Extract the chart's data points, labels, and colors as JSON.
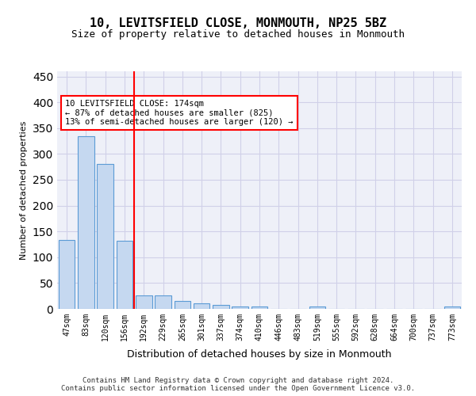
{
  "title1": "10, LEVITSFIELD CLOSE, MONMOUTH, NP25 5BZ",
  "title2": "Size of property relative to detached houses in Monmouth",
  "xlabel": "Distribution of detached houses by size in Monmouth",
  "ylabel": "Number of detached properties",
  "categories": [
    "47sqm",
    "83sqm",
    "120sqm",
    "156sqm",
    "192sqm",
    "229sqm",
    "265sqm",
    "301sqm",
    "337sqm",
    "374sqm",
    "410sqm",
    "446sqm",
    "483sqm",
    "519sqm",
    "555sqm",
    "592sqm",
    "628sqm",
    "664sqm",
    "700sqm",
    "737sqm",
    "773sqm"
  ],
  "values": [
    133,
    335,
    281,
    132,
    26,
    26,
    15,
    11,
    7,
    5,
    4,
    0,
    0,
    4,
    0,
    0,
    0,
    0,
    0,
    0,
    4
  ],
  "bar_color": "#c5d8f0",
  "bar_edge_color": "#5b9bd5",
  "vline_x": 3.5,
  "vline_color": "red",
  "annotation_text": "10 LEVITSFIELD CLOSE: 174sqm\n← 87% of detached houses are smaller (825)\n13% of semi-detached houses are larger (120) →",
  "annotation_box_color": "white",
  "annotation_box_edge_color": "red",
  "ylim": [
    0,
    460
  ],
  "yticks": [
    0,
    50,
    100,
    150,
    200,
    250,
    300,
    350,
    400,
    450
  ],
  "footer_text": "Contains HM Land Registry data © Crown copyright and database right 2024.\nContains public sector information licensed under the Open Government Licence v3.0.",
  "grid_color": "#d0d0e8",
  "background_color": "#eef0f8"
}
